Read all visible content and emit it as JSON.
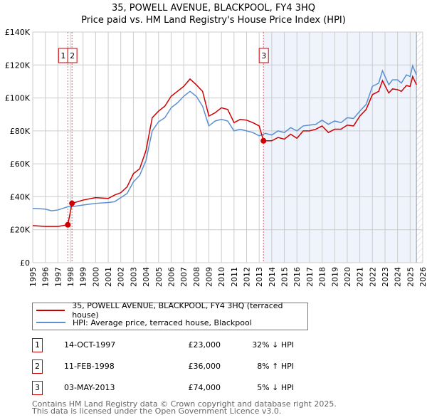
{
  "chart_data": {
    "type": "line",
    "title": "35, POWELL AVENUE, BLACKPOOL, FY4 3HQ",
    "subtitle": "Price paid vs. HM Land Registry's House Price Index (HPI)",
    "xlim": [
      1995,
      2026
    ],
    "ylim": [
      0,
      140000
    ],
    "y_ticks": [
      0,
      20000,
      40000,
      60000,
      80000,
      100000,
      120000,
      140000
    ],
    "y_tick_labels": [
      "£0",
      "£20K",
      "£40K",
      "£60K",
      "£80K",
      "£100K",
      "£120K",
      "£140K"
    ],
    "x_ticks": [
      1995,
      1996,
      1997,
      1998,
      1999,
      2000,
      2001,
      2002,
      2003,
      2004,
      2005,
      2006,
      2007,
      2008,
      2009,
      2010,
      2011,
      2012,
      2013,
      2014,
      2015,
      2016,
      2017,
      2018,
      2019,
      2020,
      2021,
      2022,
      2023,
      2024,
      2025,
      2026
    ],
    "grid": true,
    "shaded_from": 2013.34,
    "forecast_hatch_from": 2025.5,
    "series": [
      {
        "name": "35, POWELL AVENUE, BLACKPOOL, FY4 3HQ (terraced house)",
        "color": "#cc0000",
        "points": [
          [
            1995,
            22.5
          ],
          [
            1996,
            22
          ],
          [
            1997,
            22
          ],
          [
            1997.79,
            23
          ],
          [
            1998.12,
            36
          ],
          [
            1999,
            38
          ],
          [
            2000,
            39.5
          ],
          [
            2001,
            39
          ],
          [
            2001.5,
            41
          ],
          [
            2002,
            42.5
          ],
          [
            2002.5,
            46
          ],
          [
            2003,
            54
          ],
          [
            2003.5,
            57
          ],
          [
            2004,
            68
          ],
          [
            2004.5,
            88
          ],
          [
            2005,
            92
          ],
          [
            2005.5,
            95
          ],
          [
            2006,
            101
          ],
          [
            2006.5,
            104
          ],
          [
            2007,
            107
          ],
          [
            2007.5,
            111.5
          ],
          [
            2008,
            108
          ],
          [
            2008.5,
            104
          ],
          [
            2009,
            89
          ],
          [
            2009.5,
            91
          ],
          [
            2010,
            94
          ],
          [
            2010.5,
            93
          ],
          [
            2011,
            85
          ],
          [
            2011.5,
            87
          ],
          [
            2012,
            86.5
          ],
          [
            2012.5,
            85
          ],
          [
            2013,
            83
          ],
          [
            2013.34,
            74
          ],
          [
            2014,
            74
          ],
          [
            2014.5,
            76
          ],
          [
            2015,
            75
          ],
          [
            2015.5,
            78
          ],
          [
            2016,
            75.5
          ],
          [
            2016.5,
            80
          ],
          [
            2017,
            80
          ],
          [
            2017.5,
            81
          ],
          [
            2018,
            83
          ],
          [
            2018.5,
            79
          ],
          [
            2019,
            81
          ],
          [
            2019.5,
            81
          ],
          [
            2020,
            83.5
          ],
          [
            2020.5,
            83
          ],
          [
            2021,
            89
          ],
          [
            2021.5,
            93
          ],
          [
            2022,
            102
          ],
          [
            2022.5,
            104
          ],
          [
            2022.8,
            110.5
          ],
          [
            2023.3,
            103
          ],
          [
            2023.6,
            105.5
          ],
          [
            2024,
            105
          ],
          [
            2024.3,
            104
          ],
          [
            2024.7,
            107.5
          ],
          [
            2025,
            107
          ],
          [
            2025.2,
            113
          ],
          [
            2025.5,
            108
          ]
        ]
      },
      {
        "name": "HPI: Average price, terraced house, Blackpool",
        "color": "#5b8fd0",
        "points": [
          [
            1995,
            33
          ],
          [
            1996,
            32.5
          ],
          [
            1996.5,
            31.5
          ],
          [
            1997,
            32
          ],
          [
            1997.8,
            34
          ],
          [
            1998.1,
            34
          ],
          [
            1999,
            35
          ],
          [
            2000,
            36
          ],
          [
            2001,
            36.5
          ],
          [
            2001.5,
            37
          ],
          [
            2002,
            39.5
          ],
          [
            2002.5,
            42
          ],
          [
            2003,
            49
          ],
          [
            2003.5,
            53
          ],
          [
            2004,
            62
          ],
          [
            2004.5,
            80
          ],
          [
            2005,
            85.5
          ],
          [
            2005.5,
            88
          ],
          [
            2006,
            94
          ],
          [
            2006.5,
            97
          ],
          [
            2007,
            101
          ],
          [
            2007.5,
            104
          ],
          [
            2008,
            101
          ],
          [
            2008.5,
            95
          ],
          [
            2009,
            83
          ],
          [
            2009.5,
            86
          ],
          [
            2010,
            87
          ],
          [
            2010.5,
            86
          ],
          [
            2011,
            80
          ],
          [
            2011.5,
            81
          ],
          [
            2012,
            80
          ],
          [
            2012.5,
            79
          ],
          [
            2013,
            77
          ],
          [
            2013.5,
            78.5
          ],
          [
            2014,
            77.5
          ],
          [
            2014.5,
            80
          ],
          [
            2015,
            79
          ],
          [
            2015.5,
            82
          ],
          [
            2016,
            80
          ],
          [
            2016.5,
            83
          ],
          [
            2017,
            83.5
          ],
          [
            2017.5,
            84
          ],
          [
            2018,
            86.5
          ],
          [
            2018.5,
            84
          ],
          [
            2019,
            86
          ],
          [
            2019.5,
            85
          ],
          [
            2020,
            88
          ],
          [
            2020.5,
            87.5
          ],
          [
            2021,
            92
          ],
          [
            2021.5,
            96
          ],
          [
            2022,
            107
          ],
          [
            2022.5,
            109
          ],
          [
            2022.8,
            116.5
          ],
          [
            2023.3,
            108
          ],
          [
            2023.6,
            111
          ],
          [
            2024,
            111
          ],
          [
            2024.3,
            109
          ],
          [
            2024.7,
            114
          ],
          [
            2025,
            113
          ],
          [
            2025.2,
            119.5
          ],
          [
            2025.5,
            114
          ]
        ]
      }
    ],
    "sales": [
      {
        "label": "1",
        "year": 1997.79,
        "price": 23000,
        "date": "14-OCT-1997",
        "price_text": "£23,000",
        "hpi": "32% ↓ HPI"
      },
      {
        "label": "2",
        "year": 1998.12,
        "price": 36000,
        "date": "11-FEB-1998",
        "price_text": "£36,000",
        "hpi": "8% ↑ HPI"
      },
      {
        "label": "3",
        "year": 2013.34,
        "price": 74000,
        "date": "03-MAY-2013",
        "price_text": "£74,000",
        "hpi": "5% ↓ HPI"
      }
    ]
  },
  "footer": {
    "line1": "Contains HM Land Registry data © Crown copyright and database right 2025.",
    "line2": "This data is licensed under the Open Government Licence v3.0."
  }
}
